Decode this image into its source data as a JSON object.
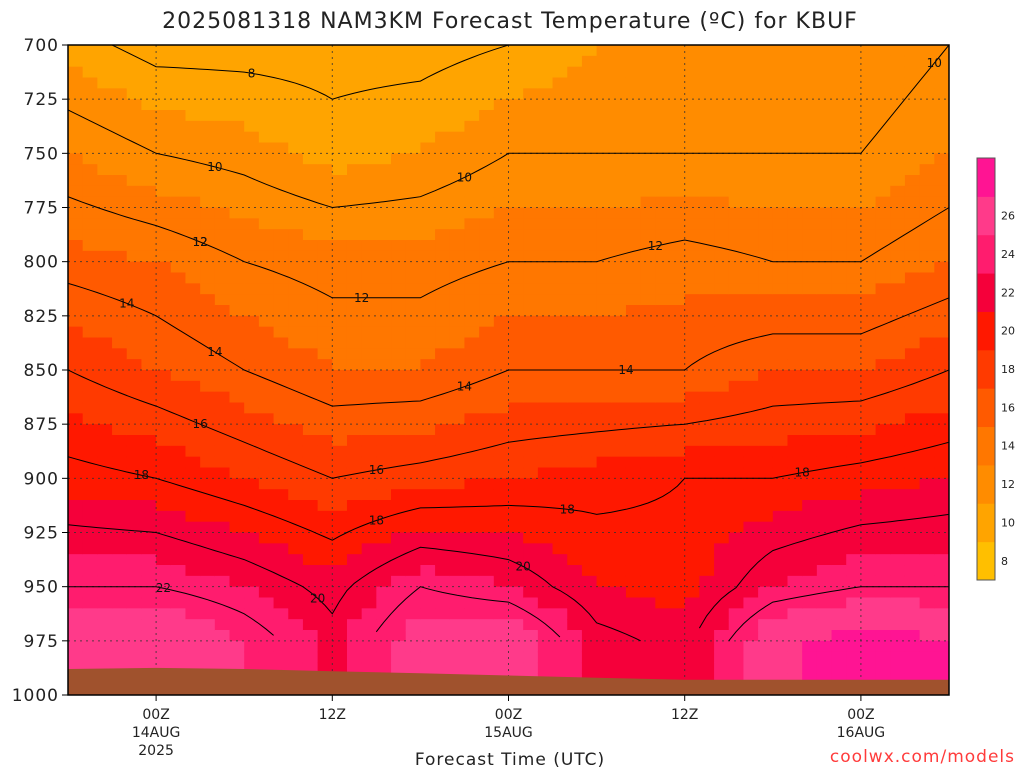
{
  "chart_data": {
    "type": "heatmap",
    "title": "2025081318 NAM3KM Forecast Temperature (ºC) for KBUF",
    "xlabel": "Forecast Time (UTC)",
    "credit": "coolwx.com/models",
    "y_ticks": [
      "700",
      "725",
      "750",
      "775",
      "800",
      "825",
      "850",
      "875",
      "900",
      "925",
      "950",
      "975",
      "1000"
    ],
    "x_ticks": [
      {
        "hour": 6,
        "lines": [
          "00Z",
          "14AUG",
          "2025"
        ]
      },
      {
        "hour": 18,
        "lines": [
          "12Z"
        ]
      },
      {
        "hour": 30,
        "lines": [
          "00Z",
          "15AUG"
        ]
      },
      {
        "hour": 42,
        "lines": [
          "12Z"
        ]
      },
      {
        "hour": 54,
        "lines": [
          "00Z",
          "16AUG"
        ]
      }
    ],
    "colorbar_levels": [
      "8",
      "10",
      "12",
      "14",
      "16",
      "18",
      "20",
      "22",
      "24",
      "26"
    ],
    "x_range_hours": [
      0,
      60
    ],
    "y_range_hpa": [
      700,
      1000
    ],
    "contour_labels": [
      "8",
      "10",
      "10",
      "10",
      "12",
      "12",
      "12",
      "12",
      "14",
      "14",
      "14",
      "14",
      "16",
      "16",
      "18",
      "18",
      "18",
      "18",
      "20",
      "20",
      "22"
    ],
    "temperature_at_pressure": {
      "x_hours": [
        0,
        6,
        12,
        18,
        24,
        30,
        36,
        42,
        48,
        54,
        60
      ],
      "rows": [
        {
          "p": 700,
          "t": [
            8.5,
            7.5,
            7.5,
            7.5,
            7.5,
            8.0,
            9.0,
            9.0,
            9.0,
            9.0,
            10.0
          ]
        },
        {
          "p": 750,
          "t": [
            11.0,
            10.0,
            9.5,
            8.5,
            9.0,
            10.0,
            10.0,
            10.0,
            10.0,
            10.0,
            11.0
          ]
        },
        {
          "p": 800,
          "t": [
            13.5,
            13.0,
            12.0,
            11.5,
            11.5,
            12.0,
            12.0,
            12.5,
            12.0,
            12.0,
            13.0
          ]
        },
        {
          "p": 850,
          "t": [
            16.0,
            15.0,
            14.0,
            13.0,
            13.0,
            14.0,
            14.0,
            14.0,
            15.0,
            15.0,
            16.0
          ]
        },
        {
          "p": 900,
          "t": [
            18.5,
            18.0,
            17.0,
            16.0,
            16.5,
            17.0,
            17.5,
            18.0,
            18.0,
            18.5,
            19.0
          ]
        },
        {
          "p": 950,
          "t": [
            22.0,
            22.0,
            21.0,
            19.5,
            22.0,
            21.0,
            19.0,
            18.5,
            21.0,
            22.0,
            22.0
          ]
        },
        {
          "p": 975,
          "t": [
            24.0,
            25.0,
            23.0,
            20.5,
            24.0,
            24.5,
            20.5,
            19.5,
            24.5,
            26.0,
            25.0
          ]
        },
        {
          "p": 1000,
          "t": [
            24.0,
            25.0,
            23.0,
            20.5,
            24.0,
            24.5,
            20.5,
            19.5,
            24.5,
            26.0,
            25.0
          ]
        }
      ]
    },
    "surface_pressure_hpa": {
      "x_hours": [
        0,
        6,
        12,
        18,
        24,
        30,
        36,
        42,
        48,
        54,
        60
      ],
      "p": [
        988,
        987.5,
        988,
        989,
        990,
        991,
        992,
        993,
        993,
        993,
        993
      ]
    },
    "colors": {
      "fill_levels": [
        "#ffbf00",
        "#ffa400",
        "#ff8c00",
        "#ff7700",
        "#ff5a00",
        "#ff3a00",
        "#ff1800",
        "#f5003a",
        "#ff1c6e",
        "#ff3a8a",
        "#ff1493"
      ],
      "terrain": "#a0522d",
      "contour": "#000000",
      "credit": "#ff3b3b"
    }
  }
}
